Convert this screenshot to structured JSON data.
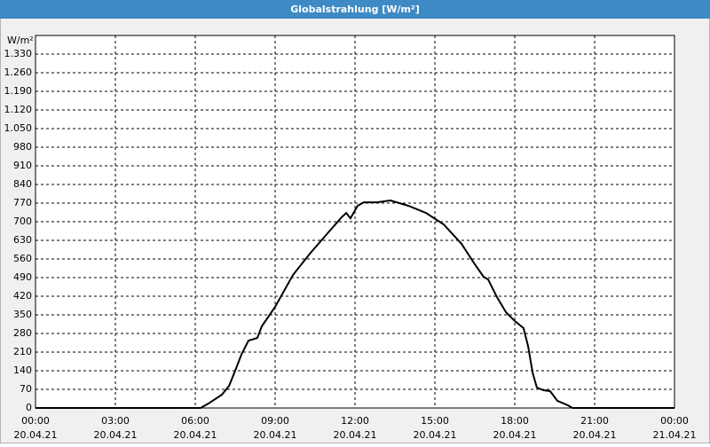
{
  "chart_data": {
    "type": "line",
    "title": "Globalstrahlung [W/m²]",
    "y_unit": "W/m²",
    "x": [
      0,
      3,
      6,
      6.2,
      6.5,
      7,
      7.27,
      7.5,
      7.73,
      8,
      8.33,
      8.5,
      9,
      9.67,
      10.33,
      11,
      11.5,
      11.67,
      11.83,
      12.1,
      12.33,
      12.83,
      13.33,
      14,
      14.67,
      15.33,
      16,
      16.5,
      16.83,
      17,
      17.33,
      17.67,
      18,
      18.33,
      18.5,
      18.67,
      18.83,
      19.07,
      19.33,
      19.6,
      20,
      20.17,
      22,
      24
    ],
    "series": [
      {
        "name": "Globalstrahlung",
        "color": "#000000",
        "values": [
          0,
          0,
          0,
          0,
          17,
          50,
          83,
          140,
          200,
          253,
          263,
          307,
          380,
          500,
          583,
          660,
          717,
          733,
          713,
          760,
          773,
          773,
          780,
          760,
          733,
          690,
          617,
          540,
          493,
          483,
          417,
          360,
          327,
          300,
          233,
          133,
          77,
          67,
          63,
          27,
          10,
          0,
          0,
          0
        ]
      }
    ],
    "xlim": [
      0,
      24
    ],
    "xticks": [
      {
        "value": 0,
        "label": "00:00",
        "date": "20.04.21"
      },
      {
        "value": 3,
        "label": "03:00",
        "date": "20.04.21"
      },
      {
        "value": 6,
        "label": "06:00",
        "date": "20.04.21"
      },
      {
        "value": 9,
        "label": "09:00",
        "date": "20.04.21"
      },
      {
        "value": 12,
        "label": "12:00",
        "date": "20.04.21"
      },
      {
        "value": 15,
        "label": "15:00",
        "date": "20.04.21"
      },
      {
        "value": 18,
        "label": "18:00",
        "date": "20.04.21"
      },
      {
        "value": 21,
        "label": "21:00",
        "date": "20.04.21"
      },
      {
        "value": 24,
        "label": "00:00",
        "date": "21.04.21"
      }
    ],
    "ylim": [
      0,
      1400
    ],
    "yticks": [
      0,
      70,
      140,
      210,
      280,
      350,
      420,
      490,
      560,
      630,
      700,
      770,
      840,
      910,
      980,
      {
        "value": 1050,
        "label": "1.050"
      },
      {
        "value": 1120,
        "label": "1.120"
      },
      {
        "value": 1190,
        "label": "1.190"
      },
      {
        "value": 1260,
        "label": "1.260"
      },
      {
        "value": 1330,
        "label": "1.330"
      }
    ],
    "grid": true
  }
}
